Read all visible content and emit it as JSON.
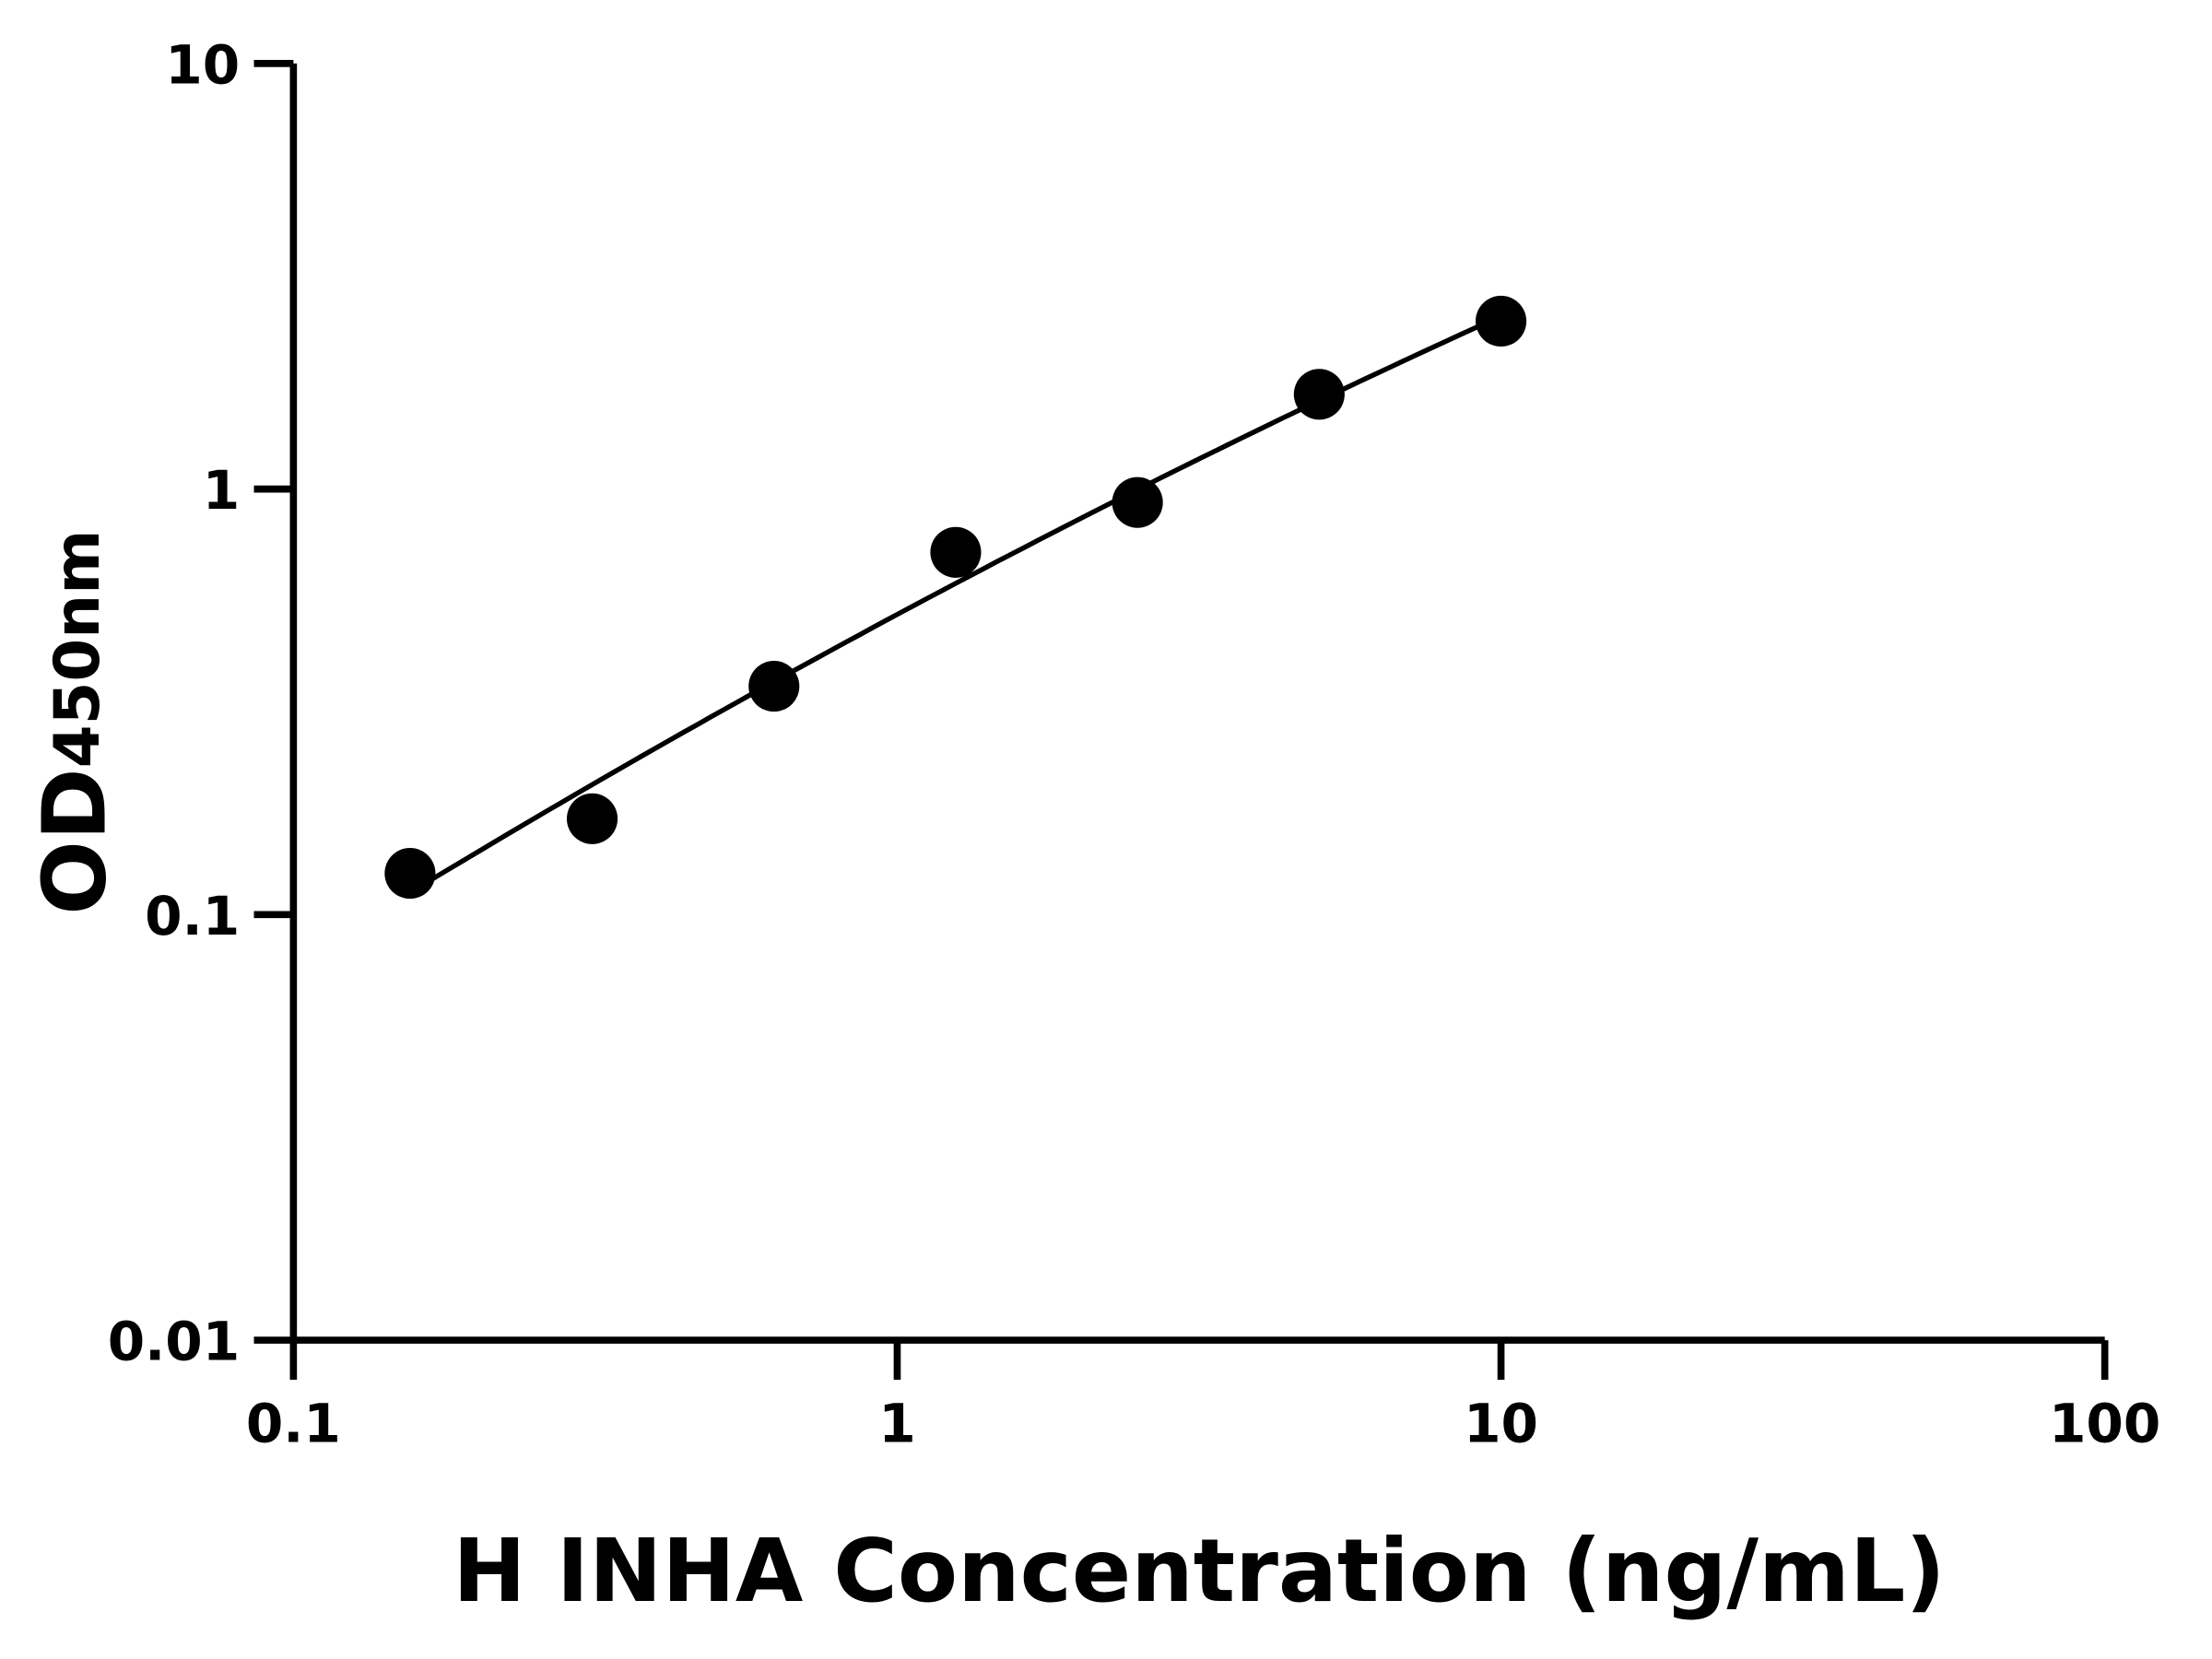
{
  "chart_data": {
    "type": "scatter",
    "title": "",
    "xlabel": "H INHA Concentration (ng/mL)",
    "ylabel_main": "OD",
    "ylabel_sub": "450nm",
    "x_scale": "log",
    "y_scale": "log",
    "xlim": [
      0.1,
      100
    ],
    "ylim": [
      0.01,
      10
    ],
    "x_ticks": [
      0.1,
      1,
      10,
      100
    ],
    "x_tick_labels": [
      "0.1",
      "1",
      "10",
      "100"
    ],
    "y_ticks": [
      0.01,
      0.1,
      1,
      10
    ],
    "y_tick_labels": [
      "0.01",
      "0.1",
      "1",
      "10"
    ],
    "grid": false,
    "legend": "none",
    "fit_curve": true,
    "colors": {
      "points": "#000000",
      "curve": "#000000",
      "axes": "#000000"
    },
    "x": [
      0.156,
      0.3125,
      0.625,
      1.25,
      2.5,
      5,
      10
    ],
    "y": [
      0.125,
      0.168,
      0.344,
      0.71,
      0.93,
      1.67,
      2.48
    ]
  }
}
